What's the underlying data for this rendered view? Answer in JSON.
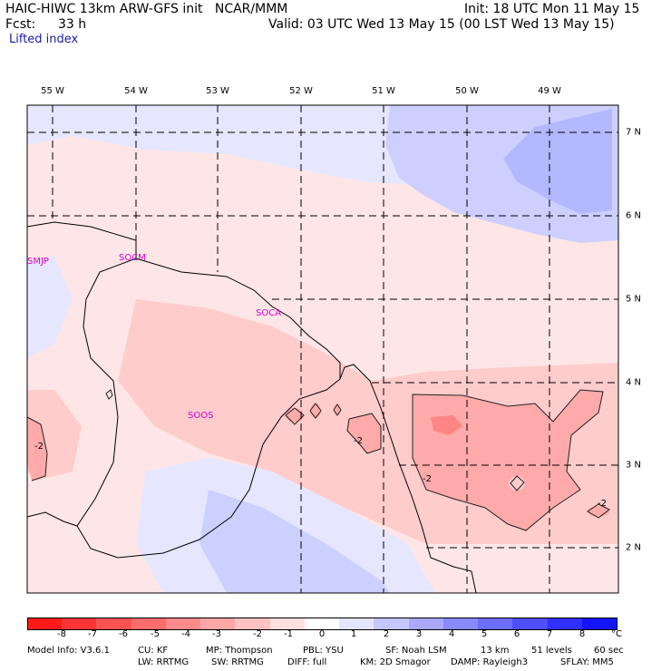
{
  "header": {
    "model_title": "HAIC-HIWC 13km ARW-GFS init   NCAR/MMM",
    "init": "Init: 18 UTC Mon 11 May 15",
    "fcst_label": "Fcst:",
    "fcst_value": "33 h",
    "valid": "Valid: 03 UTC Wed 13 May 15 (00 LST Wed 13 May 15)",
    "field": "Lifted index"
  },
  "map": {
    "longitude_labels": [
      "55 W",
      "54 W",
      "53 W",
      "52 W",
      "51 W",
      "50 W",
      "49 W"
    ],
    "latitude_labels": [
      "7 N",
      "6 N",
      "5 N",
      "4 N",
      "3 N",
      "2 N"
    ],
    "station_labels": [
      "SMJP",
      "SOCM",
      "SOCA",
      "SOOS"
    ],
    "contour_labels": [
      "-2",
      "-2",
      "-2",
      "-2"
    ]
  },
  "colorbar": {
    "colors": [
      "#ff1a1a",
      "#ff3535",
      "#ff5252",
      "#ff6c6c",
      "#ff8a8a",
      "#ffa6a6",
      "#ffc2c2",
      "#ffe0e0",
      "#ffffff",
      "#e4e4ff",
      "#c6c6ff",
      "#a8a8ff",
      "#8a8aff",
      "#6c6cff",
      "#4f4fff",
      "#3131ff",
      "#1414ff"
    ],
    "tick_labels": [
      "-8",
      "-7",
      "-6",
      "-5",
      "-4",
      "-3",
      "-2",
      "-1",
      "0",
      "1",
      "2",
      "3",
      "4",
      "5",
      "6",
      "7",
      "8",
      "°C"
    ]
  },
  "model_info": {
    "line1": [
      "Model Info: V3.6.1",
      "CU: KF",
      "MP: Thompson",
      "PBL: YSU",
      "SF: Noah LSM",
      "13 km",
      "51 levels",
      "60 sec"
    ],
    "line2": [
      "LW: RRTMG",
      "SW: RRTMG",
      "DIFF: full",
      "KM: 2D Smagor",
      "DAMP: Rayleigh3",
      "SFLAY: MM5"
    ]
  }
}
